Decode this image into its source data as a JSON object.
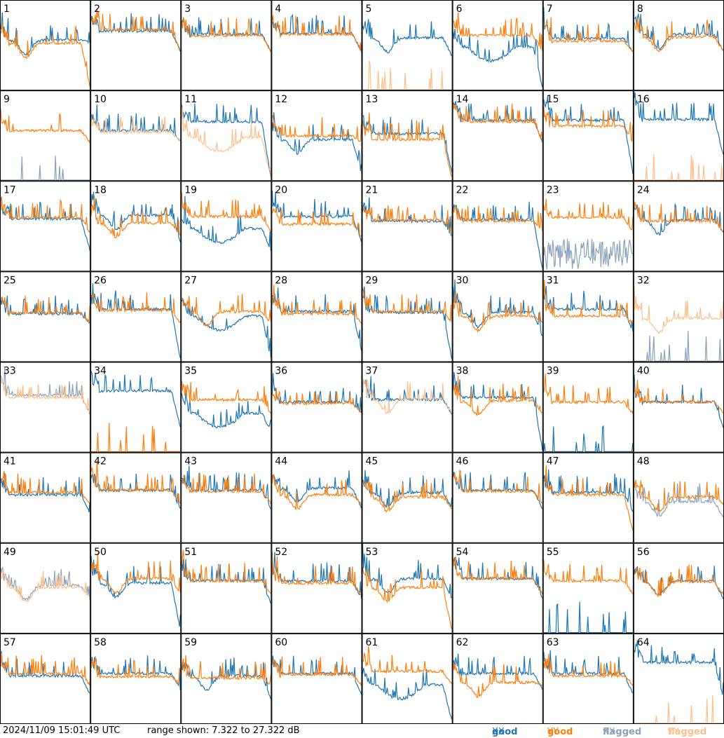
{
  "footer": {
    "timestamp": "2024/11/09 15:01:49 UTC",
    "range_text": "range shown: 7.322 to 27.322 dB"
  },
  "legend": {
    "good_xx": {
      "word": "good",
      "pol": "XX"
    },
    "good_yy": {
      "word": "good",
      "pol": "YY"
    },
    "flagged_xx": {
      "word": "flagged",
      "pol": "XX"
    },
    "flagged_yy": {
      "word": "flagged",
      "pol": "YY"
    }
  },
  "colors": {
    "good_xx": "#1f77b4",
    "good_yy": "#ff7f0e",
    "flagged_xx": "#8ba2b8",
    "flagged_yy": "#ffbf8c"
  },
  "chart_data": {
    "type": "line",
    "layout": "8x8 small multiples",
    "ylim": [
      7.322,
      27.322
    ],
    "y_unit": "dB",
    "series_names": [
      "good XX",
      "good YY",
      "flagged XX",
      "flagged YY"
    ],
    "panels": [
      {
        "id": "1",
        "xx": "good",
        "yy": "good",
        "xx_level": 18.5,
        "yy_level": 17.8,
        "xx_profile": "dip",
        "yy_profile": "dip",
        "xx_edge": 18,
        "yy_edge": 8
      },
      {
        "id": "2",
        "xx": "good",
        "yy": "good",
        "xx_level": 20.5,
        "yy_level": 20.8,
        "xx_profile": "flat",
        "yy_profile": "flat",
        "xx_edge": 16,
        "yy_edge": 16
      },
      {
        "id": "3",
        "xx": "good",
        "yy": "good",
        "xx_level": 19.8,
        "yy_level": 19.5,
        "xx_profile": "flat",
        "yy_profile": "flat",
        "xx_edge": 16,
        "yy_edge": 16
      },
      {
        "id": "4",
        "xx": "good",
        "yy": "good",
        "xx_level": 20.0,
        "yy_level": 19.8,
        "xx_profile": "flat",
        "yy_profile": "flat",
        "xx_edge": 16,
        "yy_edge": 16
      },
      {
        "id": "5",
        "xx": "good",
        "yy": "flagged",
        "xx_level": 19.0,
        "yy_level": 7.4,
        "xx_profile": "dip",
        "yy_profile": "spikes",
        "xx_edge": 15,
        "yy_edge": 7.4
      },
      {
        "id": "6",
        "xx": "good",
        "yy": "good",
        "xx_level": 17.0,
        "yy_level": 19.5,
        "xx_profile": "wave",
        "yy_profile": "flat",
        "xx_edge": 8,
        "yy_edge": 16
      },
      {
        "id": "7",
        "xx": "good",
        "yy": "good",
        "xx_level": 18.8,
        "yy_level": 18.3,
        "xx_profile": "flat",
        "yy_profile": "flat",
        "xx_edge": 16,
        "yy_edge": 16
      },
      {
        "id": "8",
        "xx": "good",
        "yy": "good",
        "xx_level": 19.8,
        "yy_level": 19.2,
        "xx_profile": "dip",
        "yy_profile": "dip",
        "xx_edge": 16,
        "yy_edge": 16
      },
      {
        "id": "9",
        "xx": "flagged",
        "yy": "good",
        "xx_level": 7.4,
        "yy_level": 18.5,
        "xx_profile": "spikes",
        "yy_profile": "flat",
        "xx_edge": 7.4,
        "yy_edge": 16
      },
      {
        "id": "10",
        "xx": "good",
        "yy": "flagged",
        "xx_level": 18.5,
        "yy_level": 18.2,
        "xx_profile": "flat",
        "yy_profile": "flat",
        "xx_edge": 16,
        "yy_edge": 16
      },
      {
        "id": "11",
        "xx": "good",
        "yy": "flagged",
        "xx_level": 20.5,
        "yy_level": 17.0,
        "xx_profile": "flat",
        "yy_profile": "wave",
        "xx_edge": 8,
        "yy_edge": 8
      },
      {
        "id": "12",
        "xx": "good",
        "yy": "good",
        "xx_level": 16.5,
        "yy_level": 17.3,
        "xx_profile": "dip",
        "yy_profile": "flat",
        "xx_edge": 9,
        "yy_edge": 16
      },
      {
        "id": "13",
        "xx": "good",
        "yy": "good",
        "xx_level": 17.8,
        "yy_level": 16.5,
        "xx_profile": "flat",
        "yy_profile": "flat",
        "xx_edge": 9,
        "yy_edge": 8
      },
      {
        "id": "14",
        "xx": "good",
        "yy": "good",
        "xx_level": 20.8,
        "yy_level": 20.5,
        "xx_profile": "flat",
        "yy_profile": "flat",
        "xx_edge": 16,
        "yy_edge": 16
      },
      {
        "id": "15",
        "xx": "good",
        "yy": "good",
        "xx_level": 20.8,
        "yy_level": 19.5,
        "xx_profile": "flat",
        "yy_profile": "flat",
        "xx_edge": 9,
        "yy_edge": 16
      },
      {
        "id": "16",
        "xx": "good",
        "yy": "flagged",
        "xx_level": 21.0,
        "yy_level": 7.4,
        "xx_profile": "flat",
        "yy_profile": "spikes",
        "xx_edge": 13,
        "yy_edge": 7.4
      },
      {
        "id": "17",
        "xx": "good",
        "yy": "good",
        "xx_level": 19.0,
        "yy_level": 19.3,
        "xx_profile": "flat",
        "yy_profile": "flat",
        "xx_edge": 12,
        "yy_edge": 16
      },
      {
        "id": "18",
        "xx": "good",
        "yy": "good",
        "xx_level": 19.8,
        "yy_level": 18.0,
        "xx_profile": "dip",
        "yy_profile": "dip",
        "xx_edge": 14,
        "yy_edge": 15
      },
      {
        "id": "19",
        "xx": "good",
        "yy": "good",
        "xx_level": 16.8,
        "yy_level": 19.5,
        "xx_profile": "wave",
        "yy_profile": "flat",
        "xx_edge": 12,
        "yy_edge": 16
      },
      {
        "id": "20",
        "xx": "good",
        "yy": "good",
        "xx_level": 19.5,
        "yy_level": 17.8,
        "xx_profile": "flat",
        "yy_profile": "flat",
        "xx_edge": 14,
        "yy_edge": 15
      },
      {
        "id": "21",
        "xx": "good",
        "yy": "good",
        "xx_level": 18.5,
        "yy_level": 18.7,
        "xx_profile": "flat",
        "yy_profile": "flat",
        "xx_edge": 15,
        "yy_edge": 16
      },
      {
        "id": "22",
        "xx": "good",
        "yy": "good",
        "xx_level": 18.8,
        "yy_level": 18.5,
        "xx_profile": "flat",
        "yy_profile": "flat",
        "xx_edge": 8,
        "yy_edge": 16
      },
      {
        "id": "23",
        "xx": "flagged",
        "yy": "good",
        "xx_level": 11.0,
        "yy_level": 19.3,
        "xx_profile": "noisy",
        "yy_profile": "flat",
        "xx_edge": 7.4,
        "yy_edge": 16
      },
      {
        "id": "24",
        "xx": "good",
        "yy": "good",
        "xx_level": 18.8,
        "yy_level": 18.5,
        "xx_profile": "dip",
        "yy_profile": "flat",
        "xx_edge": 16,
        "yy_edge": 16
      },
      {
        "id": "25",
        "xx": "good",
        "yy": "good",
        "xx_level": 18.0,
        "yy_level": 18.2,
        "xx_profile": "flat",
        "yy_profile": "flat",
        "xx_edge": 16,
        "yy_edge": 16
      },
      {
        "id": "26",
        "xx": "good",
        "yy": "good",
        "xx_level": 19.0,
        "yy_level": 18.8,
        "xx_profile": "flat",
        "yy_profile": "flat",
        "xx_edge": 8,
        "yy_edge": 16
      },
      {
        "id": "27",
        "xx": "good",
        "yy": "good",
        "xx_level": 17.5,
        "yy_level": 18.5,
        "xx_profile": "wave",
        "yy_profile": "dip",
        "xx_edge": 8,
        "yy_edge": 16
      },
      {
        "id": "28",
        "xx": "good",
        "yy": "good",
        "xx_level": 18.5,
        "yy_level": 18.0,
        "xx_profile": "flat",
        "yy_profile": "flat",
        "xx_edge": 10,
        "yy_edge": 16
      },
      {
        "id": "29",
        "xx": "good",
        "yy": "good",
        "xx_level": 18.3,
        "yy_level": 18.5,
        "xx_profile": "flat",
        "yy_profile": "flat",
        "xx_edge": 8,
        "yy_edge": 16
      },
      {
        "id": "30",
        "xx": "good",
        "yy": "good",
        "xx_level": 18.3,
        "yy_level": 17.5,
        "xx_profile": "dip",
        "yy_profile": "dip",
        "xx_edge": 13,
        "yy_edge": 16
      },
      {
        "id": "31",
        "xx": "good",
        "yy": "good",
        "xx_level": 19.0,
        "yy_level": 17.5,
        "xx_profile": "flat",
        "yy_profile": "flat",
        "xx_edge": 14,
        "yy_edge": 16
      },
      {
        "id": "32",
        "xx": "flagged",
        "yy": "flagged",
        "xx_level": 7.4,
        "yy_level": 17.0,
        "xx_profile": "spikes",
        "yy_profile": "dip",
        "xx_edge": 7.4,
        "yy_edge": 17
      },
      {
        "id": "33",
        "xx": "flagged",
        "yy": "flagged",
        "xx_level": 20.0,
        "yy_level": 19.5,
        "xx_profile": "flat",
        "yy_profile": "flat",
        "xx_edge": 16,
        "yy_edge": 16
      },
      {
        "id": "34",
        "xx": "good",
        "yy": "good",
        "xx_level": 21.0,
        "yy_level": 7.4,
        "xx_profile": "flat",
        "yy_profile": "spikes",
        "xx_edge": 13,
        "yy_edge": 7.4
      },
      {
        "id": "35",
        "xx": "good",
        "yy": "good",
        "xx_level": 16.0,
        "yy_level": 19.0,
        "xx_profile": "wave",
        "yy_profile": "flat",
        "xx_edge": 12,
        "yy_edge": 16
      },
      {
        "id": "36",
        "xx": "good",
        "yy": "good",
        "xx_level": 18.5,
        "yy_level": 18.2,
        "xx_profile": "flat",
        "yy_profile": "flat",
        "xx_edge": 16,
        "yy_edge": 16
      },
      {
        "id": "37",
        "xx": "good",
        "yy": "flagged",
        "xx_level": 19.0,
        "yy_level": 19.2,
        "xx_profile": "flat",
        "yy_profile": "dip",
        "xx_edge": 16,
        "yy_edge": 16
      },
      {
        "id": "38",
        "xx": "good",
        "yy": "good",
        "xx_level": 19.5,
        "yy_level": 18.8,
        "xx_profile": "flat",
        "yy_profile": "dip",
        "xx_edge": 8,
        "yy_edge": 16
      },
      {
        "id": "39",
        "xx": "good",
        "yy": "good",
        "xx_level": 7.4,
        "yy_level": 18.5,
        "xx_profile": "spikes",
        "yy_profile": "flat",
        "xx_edge": 7.4,
        "yy_edge": 16
      },
      {
        "id": "40",
        "xx": "good",
        "yy": "good",
        "xx_level": 18.5,
        "yy_level": 18.5,
        "xx_profile": "flat",
        "yy_profile": "flat",
        "xx_edge": 13,
        "yy_edge": 16
      },
      {
        "id": "41",
        "xx": "good",
        "yy": "good",
        "xx_level": 18.0,
        "yy_level": 18.5,
        "xx_profile": "flat",
        "yy_profile": "flat",
        "xx_edge": 14,
        "yy_edge": 16
      },
      {
        "id": "42",
        "xx": "good",
        "yy": "good",
        "xx_level": 19.0,
        "yy_level": 19.0,
        "xx_profile": "flat",
        "yy_profile": "flat",
        "xx_edge": 15,
        "yy_edge": 16
      },
      {
        "id": "43",
        "xx": "good",
        "yy": "good",
        "xx_level": 19.0,
        "yy_level": 18.8,
        "xx_profile": "flat",
        "yy_profile": "flat",
        "xx_edge": 15,
        "yy_edge": 16
      },
      {
        "id": "44",
        "xx": "good",
        "yy": "good",
        "xx_level": 19.5,
        "yy_level": 18.0,
        "xx_profile": "dip",
        "yy_profile": "dip",
        "xx_edge": 15,
        "yy_edge": 16
      },
      {
        "id": "45",
        "xx": "good",
        "yy": "good",
        "xx_level": 18.5,
        "yy_level": 17.5,
        "xx_profile": "dip",
        "yy_profile": "dip",
        "xx_edge": 15,
        "yy_edge": 15
      },
      {
        "id": "46",
        "xx": "good",
        "yy": "good",
        "xx_level": 19.0,
        "yy_level": 18.8,
        "xx_profile": "flat",
        "yy_profile": "flat",
        "xx_edge": 15,
        "yy_edge": 16
      },
      {
        "id": "47",
        "xx": "good",
        "yy": "good",
        "xx_level": 18.5,
        "yy_level": 18.0,
        "xx_profile": "flat",
        "yy_profile": "flat",
        "xx_edge": 14,
        "yy_edge": 10
      },
      {
        "id": "48",
        "xx": "flagged",
        "yy": "good",
        "xx_level": 16.5,
        "yy_level": 17.5,
        "xx_profile": "dip",
        "yy_profile": "dip",
        "xx_edge": 13,
        "yy_edge": 16
      },
      {
        "id": "49",
        "xx": "flagged",
        "yy": "flagged",
        "xx_level": 18.0,
        "yy_level": 17.5,
        "xx_profile": "dip",
        "yy_profile": "dip",
        "xx_edge": 15,
        "yy_edge": 15
      },
      {
        "id": "50",
        "xx": "good",
        "yy": "good",
        "xx_level": 18.5,
        "yy_level": 19.5,
        "xx_profile": "dip",
        "yy_profile": "dip",
        "xx_edge": 8,
        "yy_edge": 16
      },
      {
        "id": "51",
        "xx": "good",
        "yy": "good",
        "xx_level": 19.0,
        "yy_level": 19.0,
        "xx_profile": "flat",
        "yy_profile": "flat",
        "xx_edge": 14,
        "yy_edge": 16
      },
      {
        "id": "52",
        "xx": "good",
        "yy": "good",
        "xx_level": 19.0,
        "yy_level": 18.5,
        "xx_profile": "flat",
        "yy_profile": "flat",
        "xx_edge": 15,
        "yy_edge": 16
      },
      {
        "id": "53",
        "xx": "good",
        "yy": "good",
        "xx_level": 19.5,
        "yy_level": 17.5,
        "xx_profile": "dip",
        "yy_profile": "dip",
        "xx_edge": 15,
        "yy_edge": 8
      },
      {
        "id": "54",
        "xx": "good",
        "yy": "good",
        "xx_level": 19.5,
        "yy_level": 19.5,
        "xx_profile": "flat",
        "yy_profile": "flat",
        "xx_edge": 15,
        "yy_edge": 16
      },
      {
        "id": "55",
        "xx": "good",
        "yy": "good",
        "xx_level": 7.4,
        "yy_level": 19.0,
        "xx_profile": "spikes",
        "yy_profile": "flat",
        "xx_edge": 7.4,
        "yy_edge": 16
      },
      {
        "id": "56",
        "xx": "good",
        "yy": "good",
        "xx_level": 19.0,
        "yy_level": 18.8,
        "xx_profile": "dip",
        "yy_profile": "dip",
        "xx_edge": 15,
        "yy_edge": 16
      },
      {
        "id": "57",
        "xx": "good",
        "yy": "good",
        "xx_level": 18.0,
        "yy_level": 18.5,
        "xx_profile": "flat",
        "yy_profile": "flat",
        "xx_edge": 14,
        "yy_edge": 16
      },
      {
        "id": "58",
        "xx": "good",
        "yy": "good",
        "xx_level": 18.5,
        "yy_level": 17.8,
        "xx_profile": "flat",
        "yy_profile": "flat",
        "xx_edge": 15,
        "yy_edge": 16
      },
      {
        "id": "59",
        "xx": "good",
        "yy": "good",
        "xx_level": 18.0,
        "yy_level": 17.5,
        "xx_profile": "dip",
        "yy_profile": "flat",
        "xx_edge": 13,
        "yy_edge": 16
      },
      {
        "id": "60",
        "xx": "good",
        "yy": "good",
        "xx_level": 18.5,
        "yy_level": 18.3,
        "xx_profile": "flat",
        "yy_profile": "flat",
        "xx_edge": 14,
        "yy_edge": 16
      },
      {
        "id": "61",
        "xx": "good",
        "yy": "good",
        "xx_level": 16.0,
        "yy_level": 19.0,
        "xx_profile": "wave",
        "yy_profile": "flat",
        "xx_edge": 8,
        "yy_edge": 16
      },
      {
        "id": "62",
        "xx": "good",
        "yy": "good",
        "xx_level": 18.5,
        "yy_level": 16.5,
        "xx_profile": "flat",
        "yy_profile": "dip",
        "xx_edge": 15,
        "yy_edge": 16
      },
      {
        "id": "63",
        "xx": "good",
        "yy": "good",
        "xx_level": 18.5,
        "yy_level": 18.0,
        "xx_profile": "flat",
        "yy_profile": "flat",
        "xx_edge": 14,
        "yy_edge": 16
      },
      {
        "id": "64",
        "xx": "good",
        "yy": "flagged",
        "xx_level": 21.0,
        "yy_level": 7.4,
        "xx_profile": "flat",
        "yy_profile": "spikes",
        "xx_edge": 13,
        "yy_edge": 7.4
      }
    ]
  }
}
